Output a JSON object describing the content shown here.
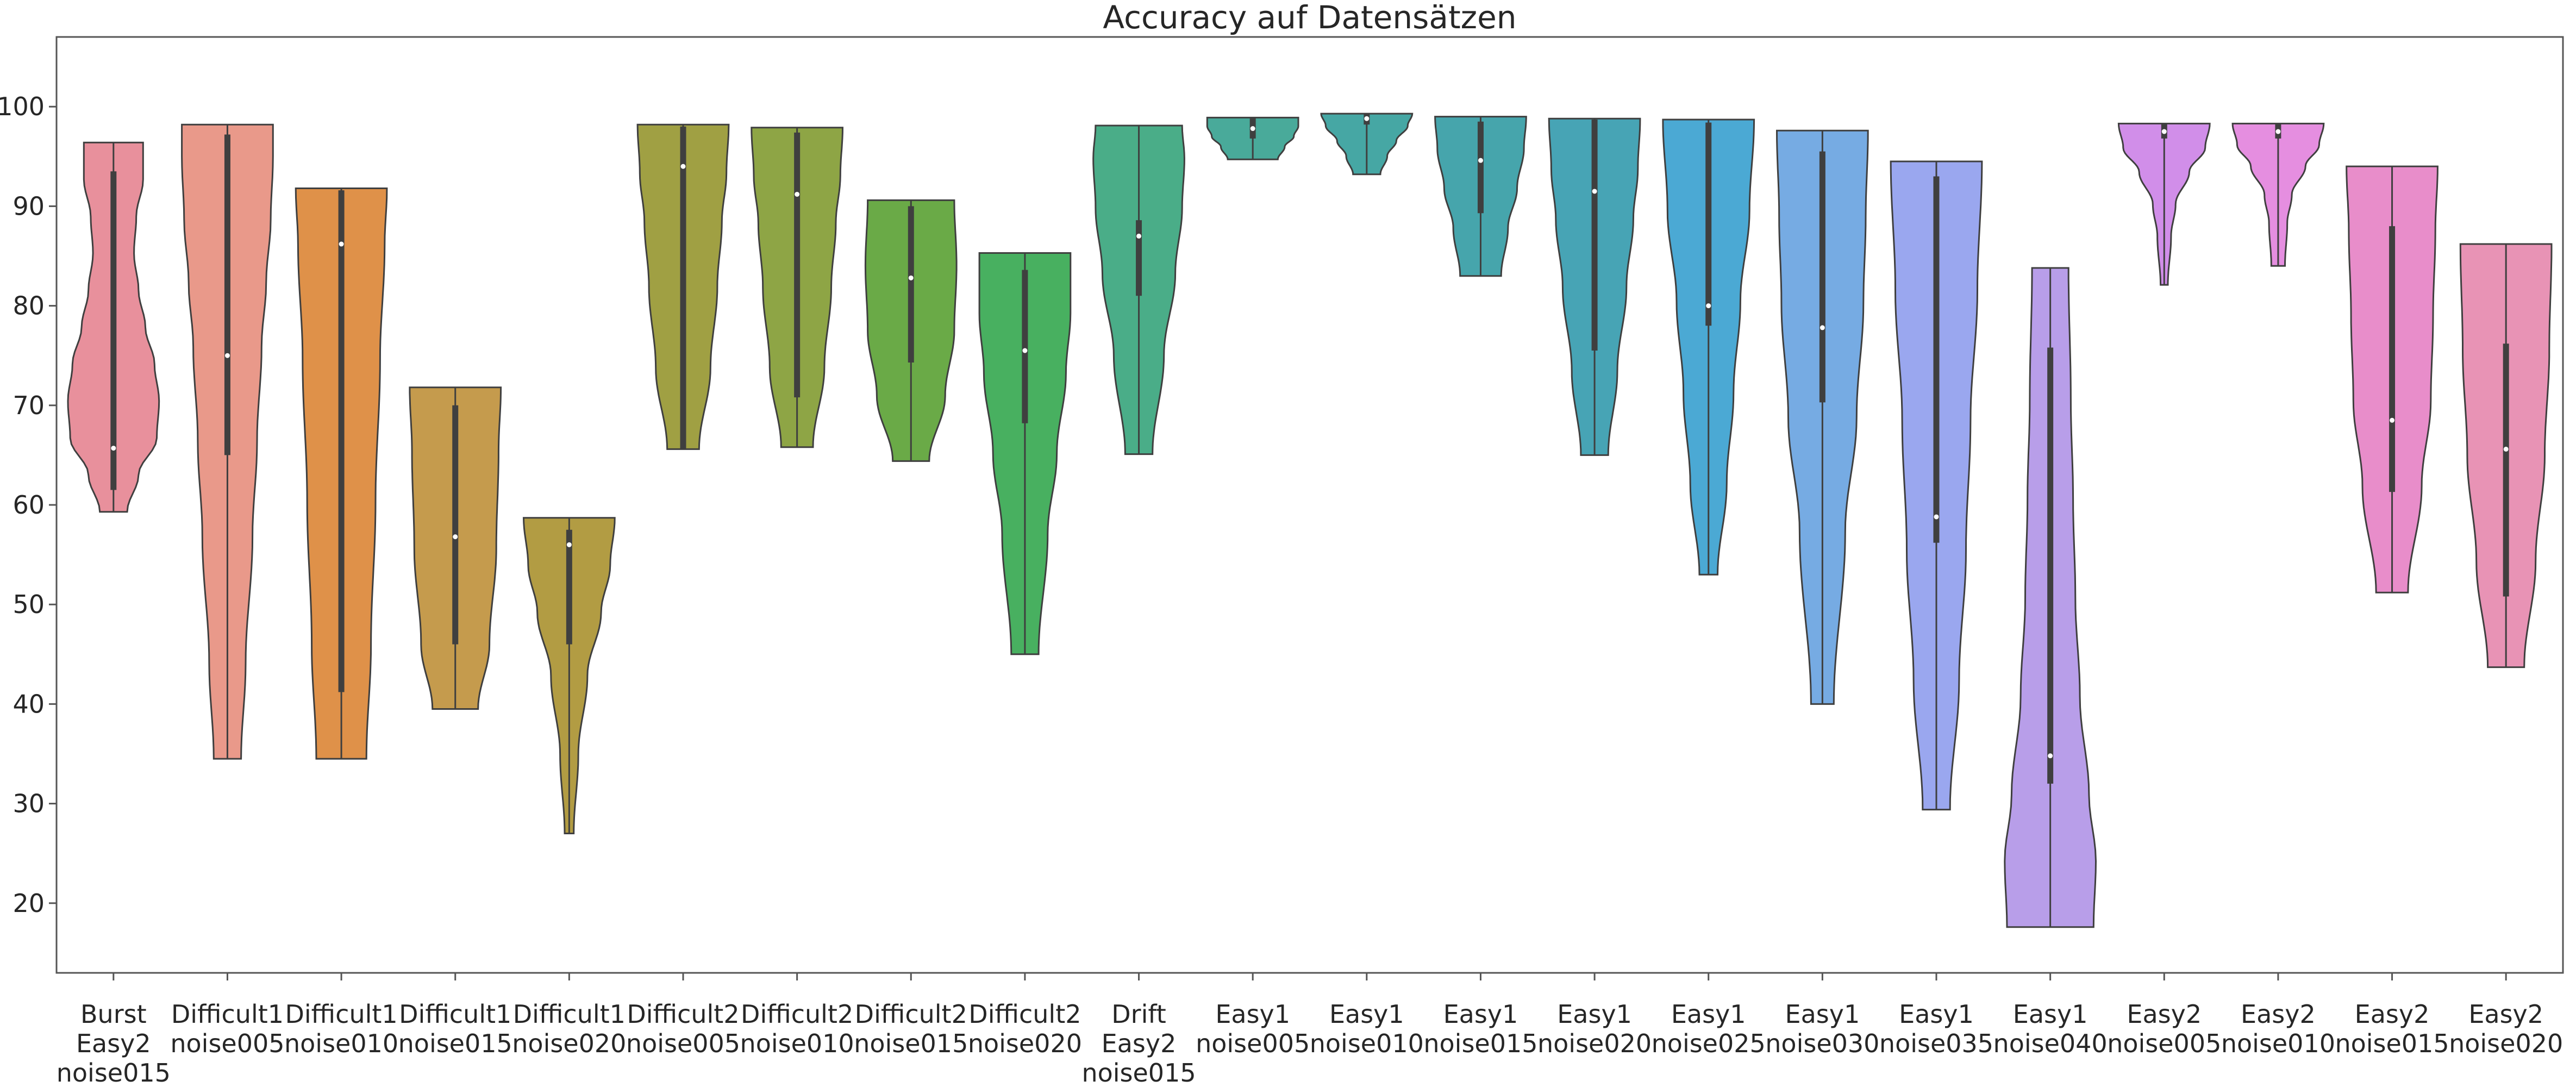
{
  "chart_data": {
    "type": "violin",
    "title": "Accuracy auf Datensätzen",
    "xlabel": "",
    "ylabel": "",
    "ylim": [
      13,
      107
    ],
    "yticks": [
      20,
      30,
      40,
      50,
      60,
      70,
      80,
      90,
      100
    ],
    "grid": false,
    "categories": [
      {
        "label": [
          "Burst",
          "Easy2",
          "noise015"
        ],
        "color": "#e8909c",
        "min": 59.3,
        "q1": 61.5,
        "median": 65.7,
        "q3": 93.5,
        "max": 96.4,
        "shape": [
          [
            0.0,
            0.3
          ],
          [
            0.1,
            0.55
          ],
          [
            0.2,
            0.95
          ],
          [
            0.3,
            1.0
          ],
          [
            0.4,
            0.9
          ],
          [
            0.5,
            0.7
          ],
          [
            0.6,
            0.55
          ],
          [
            0.7,
            0.45
          ],
          [
            0.8,
            0.5
          ],
          [
            0.9,
            0.65
          ],
          [
            1.0,
            0.65
          ]
        ]
      },
      {
        "label": [
          "Difficult1",
          "noise005"
        ],
        "color": "#e9998a",
        "min": 34.5,
        "q1": 65.0,
        "median": 75.0,
        "q3": 97.2,
        "max": 98.2,
        "shape": [
          [
            0.0,
            0.3
          ],
          [
            0.15,
            0.4
          ],
          [
            0.35,
            0.55
          ],
          [
            0.5,
            0.65
          ],
          [
            0.65,
            0.75
          ],
          [
            0.75,
            0.85
          ],
          [
            0.85,
            0.95
          ],
          [
            0.95,
            1.0
          ],
          [
            1.0,
            1.0
          ]
        ]
      },
      {
        "label": [
          "Difficult1",
          "noise010"
        ],
        "color": "#df9149",
        "min": 34.5,
        "q1": 41.2,
        "median": 86.2,
        "q3": 91.6,
        "max": 91.8,
        "shape": [
          [
            0.0,
            0.55
          ],
          [
            0.2,
            0.65
          ],
          [
            0.45,
            0.75
          ],
          [
            0.7,
            0.85
          ],
          [
            0.9,
            0.95
          ],
          [
            1.0,
            1.0
          ]
        ]
      },
      {
        "label": [
          "Difficult1",
          "noise015"
        ],
        "color": "#c59b4d",
        "min": 39.5,
        "q1": 46.0,
        "median": 56.8,
        "q3": 70.0,
        "max": 71.8,
        "shape": [
          [
            0.0,
            0.5
          ],
          [
            0.2,
            0.75
          ],
          [
            0.5,
            0.9
          ],
          [
            0.8,
            0.95
          ],
          [
            1.0,
            1.0
          ]
        ]
      },
      {
        "label": [
          "Difficult1",
          "noise020"
        ],
        "color": "#b29c43",
        "min": 27.0,
        "q1": 46.0,
        "median": 56.0,
        "q3": 57.5,
        "max": 58.7,
        "shape": [
          [
            0.0,
            0.1
          ],
          [
            0.25,
            0.2
          ],
          [
            0.5,
            0.4
          ],
          [
            0.7,
            0.7
          ],
          [
            0.85,
            0.9
          ],
          [
            1.0,
            1.0
          ]
        ]
      },
      {
        "label": [
          "Difficult2",
          "noise005"
        ],
        "color": "#a0a043",
        "min": 65.6,
        "q1": 65.6,
        "median": 94.0,
        "q3": 98.0,
        "max": 98.2,
        "shape": [
          [
            0.0,
            0.35
          ],
          [
            0.25,
            0.6
          ],
          [
            0.5,
            0.75
          ],
          [
            0.7,
            0.85
          ],
          [
            0.85,
            0.95
          ],
          [
            1.0,
            1.0
          ]
        ]
      },
      {
        "label": [
          "Difficult2",
          "noise010"
        ],
        "color": "#8ea545",
        "min": 65.8,
        "q1": 70.8,
        "median": 91.2,
        "q3": 97.4,
        "max": 97.9,
        "shape": [
          [
            0.0,
            0.35
          ],
          [
            0.25,
            0.6
          ],
          [
            0.5,
            0.75
          ],
          [
            0.7,
            0.85
          ],
          [
            0.85,
            0.95
          ],
          [
            1.0,
            1.0
          ]
        ]
      },
      {
        "label": [
          "Difficult2",
          "noise015"
        ],
        "color": "#6aaa47",
        "min": 64.4,
        "q1": 74.3,
        "median": 82.8,
        "q3": 90.0,
        "max": 90.6,
        "shape": [
          [
            0.0,
            0.4
          ],
          [
            0.25,
            0.75
          ],
          [
            0.5,
            0.95
          ],
          [
            0.75,
            1.0
          ],
          [
            1.0,
            0.95
          ]
        ]
      },
      {
        "label": [
          "Difficult2",
          "noise020"
        ],
        "color": "#48b060",
        "min": 45.0,
        "q1": 68.2,
        "median": 75.5,
        "q3": 83.6,
        "max": 85.3,
        "shape": [
          [
            0.0,
            0.3
          ],
          [
            0.3,
            0.5
          ],
          [
            0.5,
            0.7
          ],
          [
            0.7,
            0.9
          ],
          [
            0.85,
            1.0
          ],
          [
            1.0,
            1.0
          ]
        ]
      },
      {
        "label": [
          "Drift",
          "Easy2",
          "noise015"
        ],
        "color": "#4aad88",
        "min": 65.1,
        "q1": 81.0,
        "median": 87.0,
        "q3": 88.6,
        "max": 98.1,
        "shape": [
          [
            0.0,
            0.3
          ],
          [
            0.3,
            0.55
          ],
          [
            0.55,
            0.8
          ],
          [
            0.75,
            0.95
          ],
          [
            0.9,
            1.0
          ],
          [
            1.0,
            0.95
          ]
        ]
      },
      {
        "label": [
          "Easy1",
          "noise005"
        ],
        "color": "#49aa9a",
        "min": 94.7,
        "q1": 96.8,
        "median": 97.8,
        "q3": 98.9,
        "max": 98.9,
        "shape": [
          [
            0.0,
            0.55
          ],
          [
            0.3,
            0.7
          ],
          [
            0.55,
            0.9
          ],
          [
            0.8,
            1.0
          ],
          [
            1.0,
            1.0
          ]
        ]
      },
      {
        "label": [
          "Easy1",
          "noise010"
        ],
        "color": "#46a7a4",
        "min": 93.2,
        "q1": 98.2,
        "median": 98.8,
        "q3": 99.3,
        "max": 99.3,
        "shape": [
          [
            0.0,
            0.3
          ],
          [
            0.3,
            0.45
          ],
          [
            0.55,
            0.65
          ],
          [
            0.8,
            0.9
          ],
          [
            1.0,
            1.0
          ]
        ]
      },
      {
        "label": [
          "Easy1",
          "noise015"
        ],
        "color": "#46a5ac",
        "min": 83.0,
        "q1": 89.3,
        "median": 94.6,
        "q3": 98.5,
        "max": 99.0,
        "shape": [
          [
            0.0,
            0.45
          ],
          [
            0.3,
            0.6
          ],
          [
            0.55,
            0.8
          ],
          [
            0.8,
            0.95
          ],
          [
            1.0,
            1.0
          ]
        ]
      },
      {
        "label": [
          "Easy1",
          "noise020"
        ],
        "color": "#47a4b5",
        "min": 65.0,
        "q1": 75.5,
        "median": 91.5,
        "q3": 98.7,
        "max": 98.8,
        "shape": [
          [
            0.0,
            0.3
          ],
          [
            0.25,
            0.5
          ],
          [
            0.5,
            0.7
          ],
          [
            0.7,
            0.85
          ],
          [
            0.85,
            0.95
          ],
          [
            1.0,
            1.0
          ]
        ]
      },
      {
        "label": [
          "Easy1",
          "noise025"
        ],
        "color": "#4ba9d4",
        "min": 53.0,
        "q1": 78.0,
        "median": 80.0,
        "q3": 98.4,
        "max": 98.7,
        "shape": [
          [
            0.0,
            0.2
          ],
          [
            0.2,
            0.4
          ],
          [
            0.4,
            0.55
          ],
          [
            0.6,
            0.7
          ],
          [
            0.8,
            0.9
          ],
          [
            1.0,
            1.0
          ]
        ]
      },
      {
        "label": [
          "Easy1",
          "noise030"
        ],
        "color": "#76abe3",
        "min": 40.0,
        "q1": 70.3,
        "median": 77.8,
        "q3": 95.5,
        "max": 97.6,
        "shape": [
          [
            0.0,
            0.25
          ],
          [
            0.3,
            0.5
          ],
          [
            0.5,
            0.75
          ],
          [
            0.7,
            0.9
          ],
          [
            0.85,
            0.95
          ],
          [
            1.0,
            1.0
          ]
        ]
      },
      {
        "label": [
          "Easy1",
          "noise035"
        ],
        "color": "#9aa7ef",
        "min": 29.4,
        "q1": 56.2,
        "median": 58.8,
        "q3": 93.0,
        "max": 94.5,
        "shape": [
          [
            0.0,
            0.3
          ],
          [
            0.2,
            0.5
          ],
          [
            0.4,
            0.65
          ],
          [
            0.6,
            0.75
          ],
          [
            0.8,
            0.9
          ],
          [
            1.0,
            1.0
          ]
        ]
      },
      {
        "label": [
          "Easy1",
          "noise040"
        ],
        "color": "#b89ee9",
        "min": 17.6,
        "q1": 32.0,
        "median": 34.8,
        "q3": 75.8,
        "max": 83.8,
        "shape": [
          [
            0.0,
            0.95
          ],
          [
            0.1,
            1.0
          ],
          [
            0.2,
            0.85
          ],
          [
            0.35,
            0.65
          ],
          [
            0.5,
            0.55
          ],
          [
            0.65,
            0.5
          ],
          [
            0.8,
            0.45
          ],
          [
            1.0,
            0.4
          ]
        ]
      },
      {
        "label": [
          "Easy2",
          "noise005"
        ],
        "color": "#d18ee9",
        "min": 82.1,
        "q1": 96.8,
        "median": 97.5,
        "q3": 98.3,
        "max": 98.3,
        "shape": [
          [
            0.0,
            0.08
          ],
          [
            0.3,
            0.15
          ],
          [
            0.5,
            0.25
          ],
          [
            0.7,
            0.55
          ],
          [
            0.85,
            0.9
          ],
          [
            1.0,
            1.0
          ]
        ]
      },
      {
        "label": [
          "Easy2",
          "noise010"
        ],
        "color": "#e58ee0",
        "min": 84.0,
        "q1": 96.8,
        "median": 97.5,
        "q3": 98.3,
        "max": 98.3,
        "shape": [
          [
            0.0,
            0.15
          ],
          [
            0.3,
            0.2
          ],
          [
            0.5,
            0.3
          ],
          [
            0.7,
            0.6
          ],
          [
            0.85,
            0.9
          ],
          [
            1.0,
            1.0
          ]
        ]
      },
      {
        "label": [
          "Easy2",
          "noise015"
        ],
        "color": "#e88dca",
        "min": 51.2,
        "q1": 61.3,
        "median": 68.5,
        "q3": 88.0,
        "max": 94.0,
        "shape": [
          [
            0.0,
            0.35
          ],
          [
            0.25,
            0.65
          ],
          [
            0.45,
            0.85
          ],
          [
            0.65,
            0.9
          ],
          [
            0.85,
            0.95
          ],
          [
            1.0,
            1.0
          ]
        ]
      },
      {
        "label": [
          "Easy2",
          "noise020"
        ],
        "color": "#e893b5",
        "min": 43.7,
        "q1": 50.8,
        "median": 65.6,
        "q3": 76.2,
        "max": 86.2,
        "shape": [
          [
            0.0,
            0.4
          ],
          [
            0.25,
            0.65
          ],
          [
            0.5,
            0.85
          ],
          [
            0.75,
            0.95
          ],
          [
            1.0,
            1.0
          ]
        ]
      }
    ]
  }
}
